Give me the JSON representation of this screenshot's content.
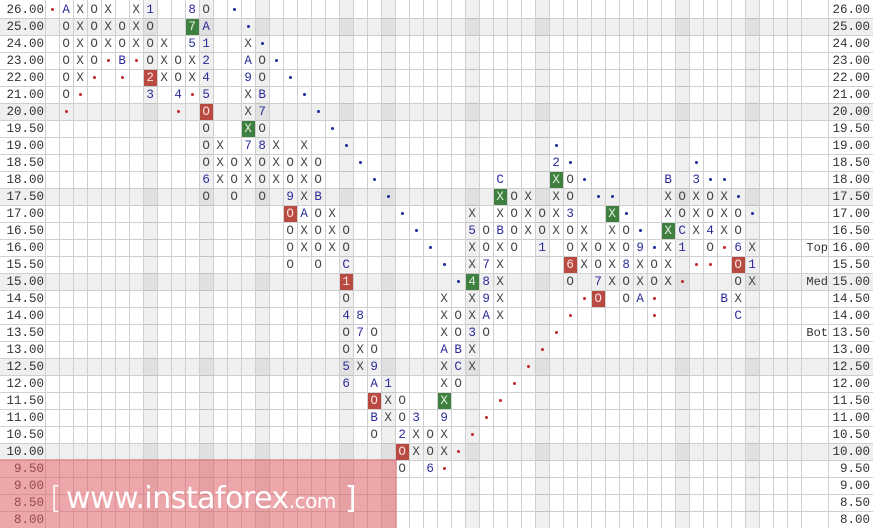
{
  "chart_data": {
    "type": "point-and-figure",
    "columns_count": 54,
    "legend": {
      "red_dot": "#c62828",
      "blue_dot": "#1e2a9a",
      "red_box": "#b94a42",
      "green_box": "#3f7f3f",
      "month_marker": "#2b2b9a"
    },
    "cell_codes": {
      "X": "rising box",
      "O": "falling box",
      "*": "red dot",
      "+": "blue dot",
      ".": "empty",
      "1-9,A,B,C": "month marker"
    },
    "rows": [
      {
        "price": "26.00",
        "cells": "*AXOX.X1..8O.+........................................"
      },
      {
        "price": "25.00",
        "cells": ".OXOXOXO..7A..+......................................."
      },
      {
        "price": "24.00",
        "cells": ".OXOXOXOX.51..X+......................................"
      },
      {
        "price": "23.00",
        "cells": ".OXO*B*OXOX2..AO+....................................."
      },
      {
        "price": "22.00",
        "cells": ".OX*.*.2XOX4..9O.+...................................."
      },
      {
        "price": "21.00",
        "cells": ".O*....3.4*5..XB..+..................................."
      },
      {
        "price": "20.00",
        "cells": ".*.......*.O..X7...+.................................."
      },
      {
        "price": "19.50",
        "cells": "...........O..XO....+................................."
      },
      {
        "price": "19.00",
        "cells": "...........OX.78X.X..+..............+................."
      },
      {
        "price": "18.50",
        "cells": "...........OXOXOXOXO..+.............2+........+......."
      },
      {
        "price": "18.00",
        "cells": "...........6XOXOXOXO...+........C...XO+.....B.3++....."
      },
      {
        "price": "17.50",
        "cells": "...........O.O.O.9XB....+.......XOX.XO.++...XOXOX+...."
      },
      {
        "price": "17.00",
        "cells": ".................OAOX....+....X.XOXOX3..X+..XOXOXO+..."
      },
      {
        "price": "16.50",
        "cells": ".................OXOXO....+...5OBOXOXOX.XO+.XCX4XO...."
      },
      {
        "price": "16.00",
        "cells": ".................OXOXO.....+..XOXO.1.OXOXO9+X1.O*6X..."
      },
      {
        "price": "15.50",
        "cells": ".................O.O.C......+.X7X....6XOX8XOX.**.O1..."
      },
      {
        "price": "15.00",
        "cells": ".....................1.......+48X....O.7XOXOX*...OX..."
      },
      {
        "price": "14.50",
        "cells": ".....................O......X.X9X.....*O.OA*....BX..."
      },
      {
        "price": "14.00",
        "cells": ".....................48.....XOXAX....*.....*.....C...."
      },
      {
        "price": "13.50",
        "cells": ".....................O7O....XO3O....*................."
      },
      {
        "price": "13.00",
        "cells": ".....................OXO....ABX....*.................."
      },
      {
        "price": "12.50",
        "cells": ".....................5X9....XCX...*..................."
      },
      {
        "price": "12.00",
        "cells": ".....................6.A1...XO...*...................."
      },
      {
        "price": "11.50",
        "cells": ".......................OXO..X...*....................."
      },
      {
        "price": "11.00",
        "cells": ".......................BXO3.9..*......................"
      },
      {
        "price": "10.50",
        "cells": ".......................O.2XOX.*......................."
      },
      {
        "price": "10.00",
        "cells": ".........................OXOX*........................"
      },
      {
        "price": "9.50",
        "cells": ".........................O.6*........................."
      },
      {
        "price": "9.00",
        "cells": "......................................................"
      },
      {
        "price": "8.50",
        "cells": "......................................................"
      },
      {
        "price": "8.00",
        "cells": "......................................................"
      }
    ],
    "boxes": [
      {
        "price": "22.00",
        "column": 7,
        "color": "red"
      },
      {
        "price": "20.00",
        "column": 11,
        "color": "red"
      },
      {
        "price": "17.00",
        "column": 17,
        "color": "red"
      },
      {
        "price": "15.00",
        "column": 21,
        "color": "red"
      },
      {
        "price": "15.50",
        "column": 37,
        "color": "red"
      },
      {
        "price": "15.50",
        "column": 49,
        "color": "red"
      },
      {
        "price": "14.50",
        "column": 39,
        "color": "red"
      },
      {
        "price": "11.50",
        "column": 23,
        "color": "red"
      },
      {
        "price": "10.00",
        "column": 25,
        "color": "red"
      },
      {
        "price": "25.00",
        "column": 10,
        "color": "green"
      },
      {
        "price": "19.50",
        "column": 14,
        "color": "green"
      },
      {
        "price": "18.00",
        "column": 36,
        "color": "green"
      },
      {
        "price": "17.50",
        "column": 32,
        "color": "green"
      },
      {
        "price": "17.00",
        "column": 40,
        "color": "green"
      },
      {
        "price": "16.50",
        "column": 44,
        "color": "green"
      },
      {
        "price": "15.00",
        "column": 30,
        "color": "green"
      },
      {
        "price": "11.50",
        "column": 28,
        "color": "green"
      }
    ],
    "shaded_prices": [
      "25.00",
      "20.00",
      "17.50",
      "15.00",
      "12.50",
      "10.00"
    ],
    "shaded_columns": [
      7,
      11,
      15,
      21,
      24,
      30,
      35,
      45,
      50
    ],
    "side_labels": [
      {
        "price": "16.00",
        "text": "Top"
      },
      {
        "price": "15.00",
        "text": "Med"
      },
      {
        "price": "13.50",
        "text": "Bot"
      }
    ]
  },
  "watermark": {
    "bracket_left": "[",
    "text": "www.instaforex",
    "suffix": ".com",
    "bracket_right": " ]"
  }
}
